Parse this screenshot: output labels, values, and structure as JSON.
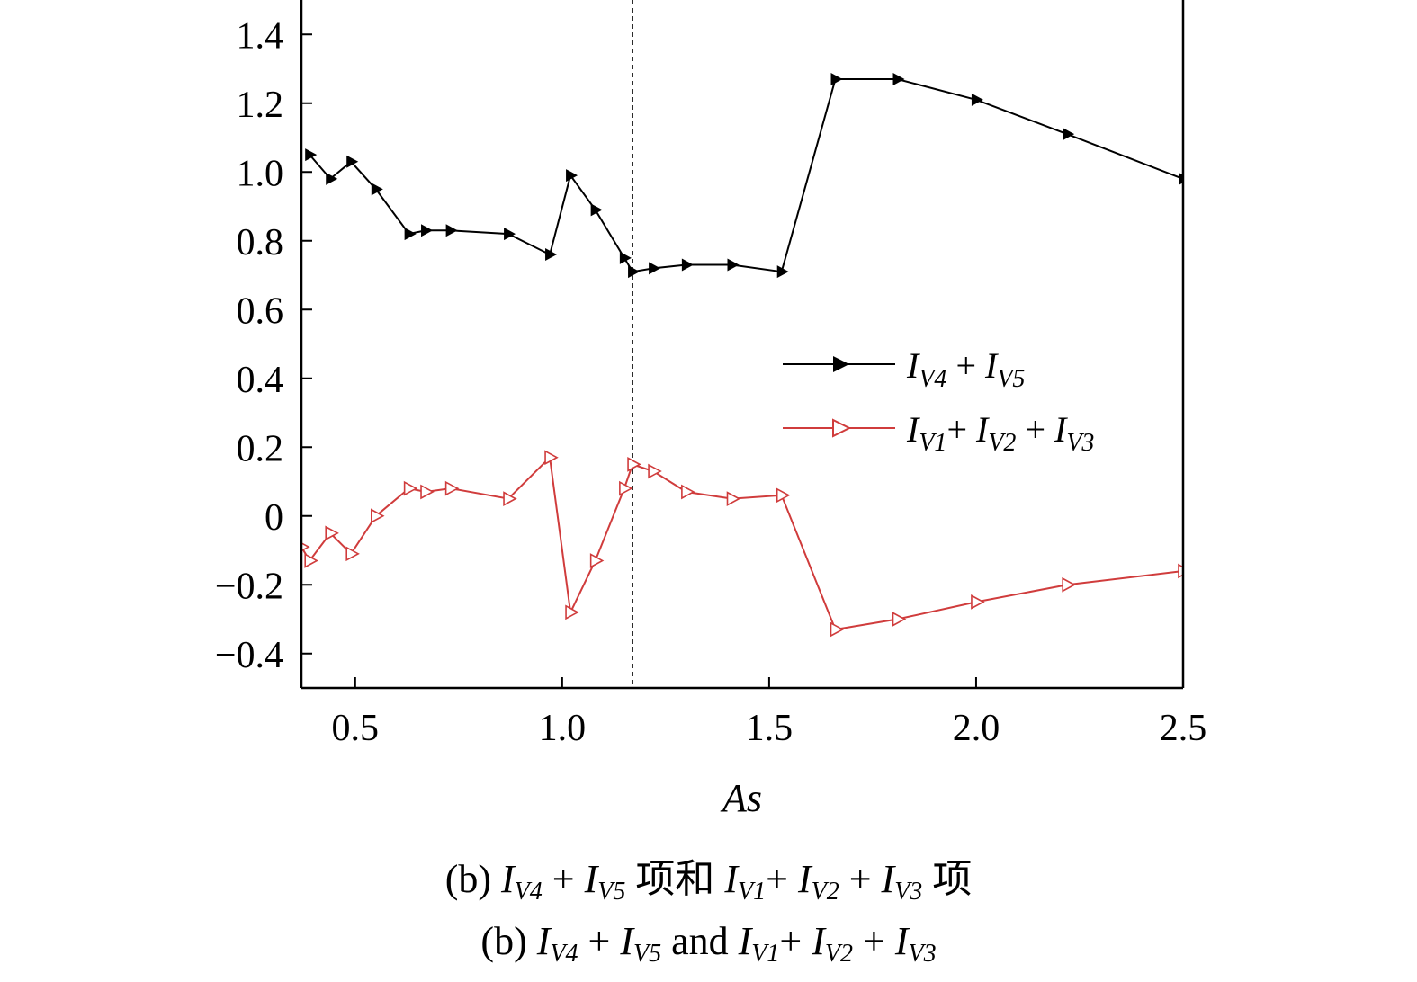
{
  "chart_data": {
    "type": "line",
    "xlabel": "As",
    "ylabel": "",
    "xlim": [
      0.37,
      2.5
    ],
    "ylim": [
      -0.5,
      1.5
    ],
    "xticks": [
      0.5,
      1.0,
      1.5,
      2.0,
      2.5
    ],
    "xtick_labels": [
      "0.5",
      "1.0",
      "1.5",
      "2.0",
      "2.5"
    ],
    "yticks": [
      1.4,
      1.2,
      1.0,
      0.8,
      0.6,
      0.4,
      0.2,
      0,
      -0.2,
      -0.4
    ],
    "ytick_labels": [
      "1.4",
      "1.2",
      "1.0",
      "0.8",
      "0.6",
      "0.4",
      "0.2",
      "0",
      "−0.2",
      "−0.4"
    ],
    "vline_x": 1.17,
    "legend_position": "right-middle",
    "series": [
      {
        "name": "I_V4 + I_V5",
        "color": "#000000",
        "marker": "filled-right-triangle",
        "x": [
          0.39,
          0.44,
          0.49,
          0.55,
          0.63,
          0.67,
          0.73,
          0.87,
          0.97,
          1.02,
          1.08,
          1.15,
          1.17,
          1.22,
          1.3,
          1.41,
          1.53,
          1.66,
          1.81,
          2.0,
          2.22,
          2.5
        ],
        "y": [
          1.05,
          0.98,
          1.03,
          0.95,
          0.82,
          0.83,
          0.83,
          0.82,
          0.76,
          0.99,
          0.89,
          0.75,
          0.71,
          0.72,
          0.73,
          0.73,
          0.71,
          1.27,
          1.27,
          1.21,
          1.11,
          0.98
        ]
      },
      {
        "name": "I_V1 + I_V2 + I_V3",
        "color": "#d03c3c",
        "marker": "hollow-right-triangle",
        "x": [
          0.37,
          0.39,
          0.44,
          0.49,
          0.55,
          0.63,
          0.67,
          0.73,
          0.87,
          0.97,
          1.02,
          1.08,
          1.15,
          1.17,
          1.22,
          1.3,
          1.41,
          1.53,
          1.66,
          1.81,
          2.0,
          2.22,
          2.5
        ],
        "y": [
          -0.09,
          -0.13,
          -0.05,
          -0.11,
          0.0,
          0.08,
          0.07,
          0.08,
          0.05,
          0.17,
          -0.28,
          -0.13,
          0.08,
          0.15,
          0.13,
          0.07,
          0.05,
          0.06,
          -0.33,
          -0.3,
          -0.25,
          -0.2,
          -0.16
        ]
      }
    ]
  },
  "legend": {
    "items": [
      {
        "I1": "I",
        "s1": "V4",
        "op1": " + ",
        "I2": "I",
        "s2": "V5"
      },
      {
        "I1": "I",
        "s1": "V1",
        "op1": "+ ",
        "I2": "I",
        "s2": "V2",
        "op2": " + ",
        "I3": "I",
        "s3": "V3"
      }
    ]
  },
  "caption": {
    "cn": {
      "prefix": "(b) ",
      "I1": "I",
      "s1": "V4",
      "op1": " + ",
      "I2": "I",
      "s2": "V5",
      "mid": " 项和 ",
      "I3": "I",
      "s3": "V1",
      "op2": "+ ",
      "I4": "I",
      "s4": "V2",
      "op3": " + ",
      "I5": "I",
      "s5": "V3",
      "suffix": " 项"
    },
    "en": {
      "prefix": "(b) ",
      "I1": "I",
      "s1": "V4",
      "op1": " + ",
      "I2": "I",
      "s2": "V5",
      "mid": " and ",
      "I3": "I",
      "s3": "V1",
      "op2": "+ ",
      "I4": "I",
      "s4": "V2",
      "op3": " + ",
      "I5": "I",
      "s5": "V3"
    }
  }
}
